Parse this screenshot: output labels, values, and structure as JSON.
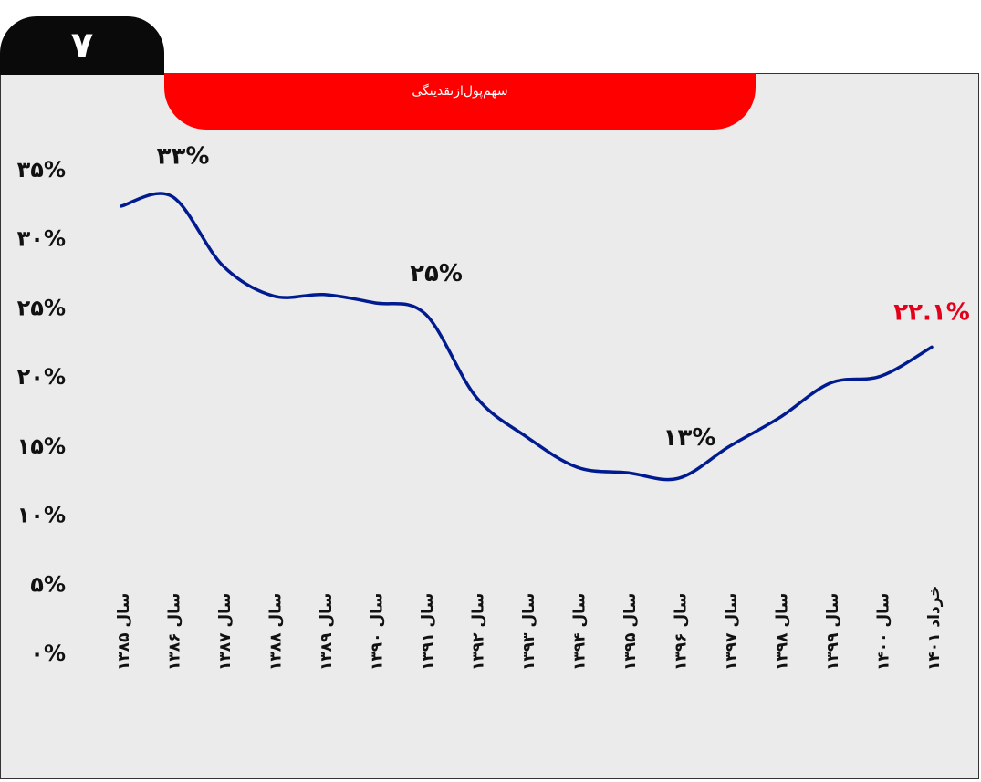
{
  "badge": {
    "number": "۷"
  },
  "colors": {
    "line": "#001b8f",
    "accent": "#ff0000",
    "highlight_label": "#e3001b",
    "label": "#111111",
    "background": "#ebebeb"
  },
  "chart_data": {
    "type": "line",
    "title": "سهم‌پول‌ازنقدینگی",
    "xlabel": "",
    "ylabel": "",
    "grid": false,
    "legend": "none",
    "ylim": [
      0,
      35
    ],
    "yticks": [
      0,
      5,
      10,
      15,
      20,
      25,
      30,
      35
    ],
    "ytick_labels": [
      "۰%",
      "۵%",
      "۱۰%",
      "۱۵%",
      "۲۰%",
      "۲۵%",
      "۳۰%",
      "۳۵%"
    ],
    "categories": [
      "سال ۱۳۸۵",
      "سال ۱۳۸۶",
      "سال ۱۳۸۷",
      "سال ۱۳۸۸",
      "سال ۱۳۸۹",
      "سال ۱۳۹۰",
      "سال ۱۳۹۱",
      "سال ۱۳۹۲",
      "سال ۱۳۹۳",
      "سال ۱۳۹۴",
      "سال ۱۳۹۵",
      "سال ۱۳۹۶",
      "سال ۱۳۹۷",
      "سال ۱۳۹۸",
      "سال ۱۳۹۹",
      "سال ۱۴۰۰",
      "خرداد ۱۴۰۱"
    ],
    "series": [
      {
        "values": [
          32.3,
          33.0,
          28.0,
          25.8,
          25.9,
          25.3,
          24.5,
          18.5,
          15.6,
          13.4,
          13.0,
          12.6,
          14.9,
          17.0,
          19.5,
          20.0,
          22.1
        ]
      }
    ],
    "annotations": [
      {
        "text": "۳۳%",
        "index": 1,
        "highlight": false
      },
      {
        "text": "۲۵%",
        "index": 6,
        "highlight": false
      },
      {
        "text": "۱۳%",
        "index": 11,
        "highlight": false
      },
      {
        "text": "۲۲.۱%",
        "index": 16,
        "highlight": true
      }
    ]
  }
}
